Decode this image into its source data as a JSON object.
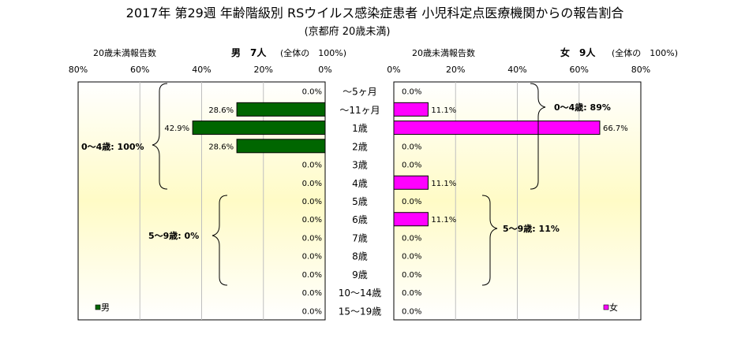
{
  "title": "2017年 第29週 年齢階級別 RSウイルス感染症患者 小児科定点医療機関からの報告割合",
  "subtitle": "(京都府 20歳未満)",
  "left_panel": {
    "header_left": "20歳未満報告数",
    "header_bold": "男　7人",
    "header_right": "(全体の　100%)",
    "group_labels": [
      "0～4歳: 100%",
      "5～9歳: 0%"
    ],
    "legend": "男",
    "bar_color": "#006600"
  },
  "right_panel": {
    "header_left": "20歳未満報告数",
    "header_bold": "女　9人",
    "header_right": "(全体の　100%)",
    "group_labels": [
      "0～4歳: 89%",
      "5～9歳: 11%"
    ],
    "legend": "女",
    "bar_color": "#ff00ff"
  },
  "chart_data": {
    "type": "bar",
    "orientation": "horizontal",
    "layout": "population-pyramid",
    "categories": [
      "～5ヶ月",
      "～11ヶ月",
      "1歳",
      "2歳",
      "3歳",
      "4歳",
      "5歳",
      "6歳",
      "7歳",
      "8歳",
      "9歳",
      "10～14歳",
      "15～19歳"
    ],
    "series": [
      {
        "name": "男",
        "values": [
          0.0,
          28.6,
          42.9,
          28.6,
          0.0,
          0.0,
          0.0,
          0.0,
          0.0,
          0.0,
          0.0,
          0.0,
          0.0
        ]
      },
      {
        "name": "女",
        "values": [
          0.0,
          11.1,
          66.7,
          0.0,
          0.0,
          11.1,
          0.0,
          11.1,
          0.0,
          0.0,
          0.0,
          0.0,
          0.0
        ]
      }
    ],
    "value_labels": {
      "男": [
        "0.0%",
        "28.6%",
        "42.9%",
        "28.6%",
        "0.0%",
        "0.0%",
        "0.0%",
        "0.0%",
        "0.0%",
        "0.0%",
        "0.0%",
        "0.0%",
        "0.0%"
      ],
      "女": [
        "0.0%",
        "11.1%",
        "66.7%",
        "0.0%",
        "0.0%",
        "11.1%",
        "0.0%",
        "11.1%",
        "0.0%",
        "0.0%",
        "0.0%",
        "0.0%",
        "0.0%"
      ]
    },
    "ticks_left": [
      "80%",
      "60%",
      "40%",
      "20%",
      "0%"
    ],
    "ticks_right": [
      "0%",
      "20%",
      "40%",
      "60%",
      "80%"
    ],
    "xlim": [
      0,
      80
    ],
    "grid": true,
    "legend_position": "bottom"
  }
}
